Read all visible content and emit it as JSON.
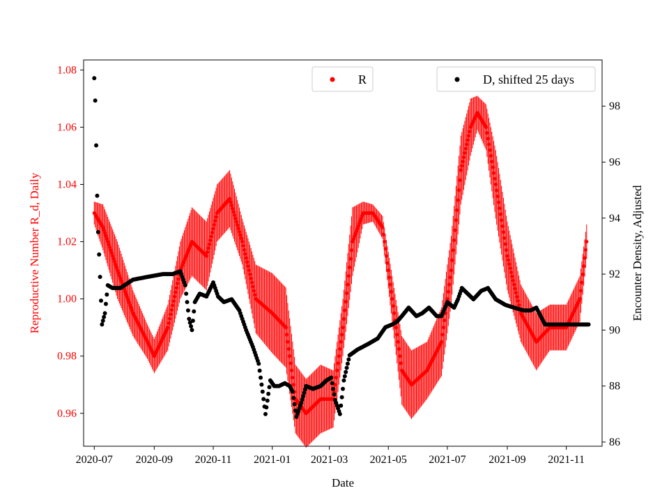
{
  "chart_data": {
    "type": "scatter",
    "title": "",
    "xlabel": "Date",
    "ylabel_left": "Reproductive Number R_d, Daily",
    "ylabel_right": "Encounter Density, Adjusted",
    "colors": {
      "R": "#ff0000",
      "D": "#000000",
      "axes": "#000000"
    },
    "x_range": [
      "2020-06-20",
      "2021-12-08"
    ],
    "x_tick_labels": [
      "2020-07",
      "2020-09",
      "2020-11",
      "2021-01",
      "2021-03",
      "2021-05",
      "2021-07",
      "2021-09",
      "2021-11"
    ],
    "x_tick_dates": [
      "2020-07-01",
      "2020-09-01",
      "2020-11-01",
      "2021-01-01",
      "2021-03-01",
      "2021-05-01",
      "2021-07-01",
      "2021-09-01",
      "2021-11-01"
    ],
    "ylim_left": [
      0.9485,
      1.0835
    ],
    "yticks_left": [
      0.96,
      0.98,
      1.0,
      1.02,
      1.04,
      1.06,
      1.08
    ],
    "ytick_labels_left": [
      "0.96",
      "0.98",
      "1.00",
      "1.02",
      "1.04",
      "1.06",
      "1.08"
    ],
    "ylim_right": [
      85.85,
      99.65
    ],
    "yticks_right": [
      86,
      88,
      90,
      92,
      94,
      96,
      98
    ],
    "ytick_labels_right": [
      "86",
      "88",
      "90",
      "92",
      "94",
      "96",
      "98"
    ],
    "legend": [
      {
        "label": "R",
        "color": "#ff0000",
        "position": "top-center"
      },
      {
        "label": "D, shifted 25 days",
        "color": "#000000",
        "position": "top-right"
      }
    ],
    "series": [
      {
        "name": "R",
        "axis": "left",
        "color": "#ff0000",
        "style": "points-with-error-bars",
        "dates": [
          "2020-07-01",
          "2020-07-10",
          "2020-07-25",
          "2020-08-10",
          "2020-08-25",
          "2020-09-01",
          "2020-09-15",
          "2020-09-28",
          "2020-10-10",
          "2020-10-25",
          "2020-11-05",
          "2020-11-18",
          "2020-12-01",
          "2020-12-15",
          "2021-01-01",
          "2021-01-15",
          "2021-01-25",
          "2021-02-05",
          "2021-02-20",
          "2021-03-05",
          "2021-03-15",
          "2021-03-25",
          "2021-04-05",
          "2021-04-15",
          "2021-04-25",
          "2021-05-05",
          "2021-05-15",
          "2021-05-25",
          "2021-06-10",
          "2021-06-25",
          "2021-07-05",
          "2021-07-15",
          "2021-07-25",
          "2021-08-01",
          "2021-08-10",
          "2021-08-20",
          "2021-09-01",
          "2021-09-15",
          "2021-10-01",
          "2021-10-15",
          "2021-11-01",
          "2021-11-15",
          "2021-11-22"
        ],
        "values": [
          1.03,
          1.025,
          1.01,
          0.995,
          0.985,
          0.98,
          0.99,
          1.01,
          1.02,
          1.015,
          1.03,
          1.035,
          1.02,
          1.0,
          0.995,
          0.99,
          0.965,
          0.96,
          0.965,
          0.965,
          0.99,
          1.02,
          1.03,
          1.03,
          1.025,
          1.0,
          0.975,
          0.97,
          0.975,
          0.985,
          1.01,
          1.045,
          1.06,
          1.065,
          1.06,
          1.04,
          1.015,
          0.995,
          0.985,
          0.99,
          0.99,
          1.0,
          1.02
        ],
        "errors": [
          0.004,
          0.008,
          0.01,
          0.008,
          0.006,
          0.006,
          0.008,
          0.01,
          0.012,
          0.012,
          0.01,
          0.01,
          0.008,
          0.012,
          0.014,
          0.014,
          0.012,
          0.012,
          0.012,
          0.01,
          0.01,
          0.012,
          0.004,
          0.003,
          0.004,
          0.008,
          0.012,
          0.012,
          0.01,
          0.012,
          0.012,
          0.012,
          0.01,
          0.006,
          0.008,
          0.012,
          0.012,
          0.01,
          0.01,
          0.008,
          0.008,
          0.008,
          0.006
        ]
      },
      {
        "name": "D, shifted 25 days",
        "axis": "right",
        "color": "#000000",
        "style": "points",
        "dates": [
          "2020-07-01",
          "2020-07-02",
          "2020-07-03",
          "2020-07-04",
          "2020-07-05",
          "2020-07-07",
          "2020-07-09",
          "2020-07-12",
          "2020-07-15",
          "2020-07-20",
          "2020-07-28",
          "2020-08-10",
          "2020-08-25",
          "2020-09-10",
          "2020-09-20",
          "2020-09-28",
          "2020-10-03",
          "2020-10-07",
          "2020-10-10",
          "2020-10-13",
          "2020-10-18",
          "2020-10-25",
          "2020-11-01",
          "2020-11-06",
          "2020-11-12",
          "2020-11-20",
          "2020-11-28",
          "2020-12-05",
          "2020-12-12",
          "2020-12-18",
          "2020-12-22",
          "2020-12-25",
          "2020-12-30",
          "2021-01-03",
          "2021-01-08",
          "2021-01-14",
          "2021-01-19",
          "2021-01-22",
          "2021-01-26",
          "2021-01-31",
          "2021-02-05",
          "2021-02-12",
          "2021-02-20",
          "2021-02-26",
          "2021-03-03",
          "2021-03-07",
          "2021-03-12",
          "2021-03-16",
          "2021-03-22",
          "2021-03-30",
          "2021-04-10",
          "2021-04-20",
          "2021-04-28",
          "2021-05-05",
          "2021-05-10",
          "2021-05-15",
          "2021-05-22",
          "2021-05-30",
          "2021-06-05",
          "2021-06-12",
          "2021-06-20",
          "2021-06-25",
          "2021-07-01",
          "2021-07-08",
          "2021-07-12",
          "2021-07-16",
          "2021-07-22",
          "2021-07-28",
          "2021-08-05",
          "2021-08-12",
          "2021-08-20",
          "2021-08-30",
          "2021-09-08",
          "2021-09-18",
          "2021-09-25",
          "2021-10-01",
          "2021-10-10",
          "2021-10-20",
          "2021-11-01",
          "2021-11-10",
          "2021-11-20",
          "2021-11-24"
        ],
        "values": [
          99.0,
          98.2,
          96.6,
          94.8,
          93.5,
          91.9,
          90.2,
          90.6,
          91.6,
          91.5,
          91.5,
          91.8,
          91.9,
          92.0,
          92.0,
          92.1,
          91.6,
          90.4,
          90.0,
          91.0,
          91.3,
          91.2,
          91.7,
          91.2,
          91.0,
          91.1,
          90.7,
          90.0,
          89.4,
          88.8,
          87.8,
          87.0,
          88.2,
          88.0,
          88.0,
          88.1,
          88.0,
          87.8,
          86.9,
          87.4,
          88.0,
          87.9,
          88.0,
          88.2,
          88.3,
          87.5,
          87.0,
          88.2,
          89.1,
          89.3,
          89.5,
          89.7,
          90.1,
          90.2,
          90.3,
          90.5,
          90.8,
          90.5,
          90.6,
          90.8,
          90.5,
          90.5,
          91.0,
          90.8,
          91.1,
          91.5,
          91.3,
          91.1,
          91.4,
          91.5,
          91.1,
          90.9,
          90.8,
          90.7,
          90.7,
          90.8,
          90.2,
          90.2,
          90.2,
          90.2,
          90.2,
          90.2
        ]
      }
    ]
  }
}
